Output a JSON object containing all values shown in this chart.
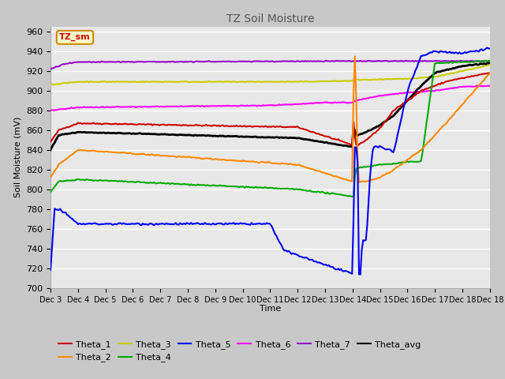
{
  "title": "TZ Soil Moisture",
  "xlabel": "Time",
  "ylabel": "Soil Moisture (mV)",
  "ylim": [
    700,
    965
  ],
  "yticks": [
    700,
    720,
    740,
    760,
    780,
    800,
    820,
    840,
    860,
    880,
    900,
    920,
    940,
    960
  ],
  "legend_label": "TZ_sm",
  "series_colors": {
    "Theta_1": "#cc0000",
    "Theta_2": "#ff8800",
    "Theta_3": "#cccc00",
    "Theta_4": "#00aa00",
    "Theta_5": "#0000ff",
    "Theta_6": "#ff00ff",
    "Theta_7": "#9900cc",
    "Theta_avg": "#000000"
  },
  "fig_bg": "#c8c8c8",
  "plot_bg": "#e8e8e8",
  "grid_color": "#ffffff",
  "num_points": 320
}
